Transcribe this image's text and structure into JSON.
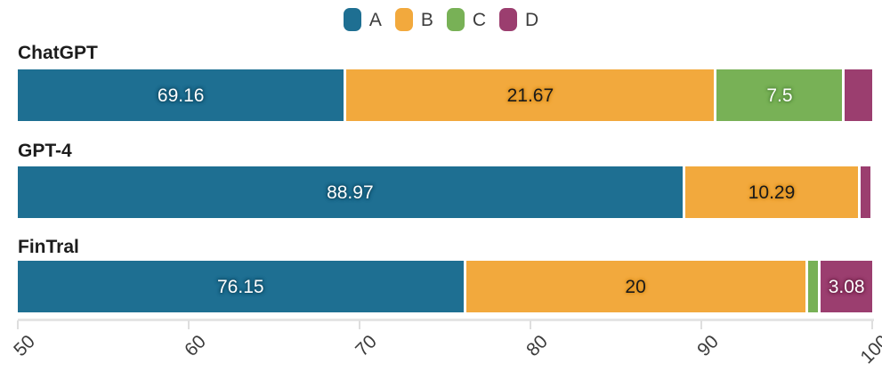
{
  "chart_data": {
    "type": "bar",
    "orientation": "horizontal",
    "stacked": true,
    "title": "",
    "categories": [
      "ChatGPT",
      "GPT-4",
      "FinTral"
    ],
    "series": [
      {
        "name": "A",
        "color": "#1E6F92",
        "label_color": "#ffffff",
        "label_halo": "#14536E",
        "values": [
          69.16,
          88.97,
          76.15
        ],
        "labels": [
          "69.16",
          "88.97",
          "76.15"
        ]
      },
      {
        "name": "B",
        "color": "#F2A93D",
        "label_color": "#1a1a1a",
        "label_halo": "#DF9526",
        "values": [
          21.67,
          10.29,
          20
        ],
        "labels": [
          "21.67",
          "10.29",
          "20"
        ]
      },
      {
        "name": "C",
        "color": "#78B156",
        "label_color": "#ffffff",
        "label_halo": "#5B9140",
        "values": [
          7.5,
          0,
          0.77
        ],
        "labels": [
          "7.5",
          "",
          ""
        ]
      },
      {
        "name": "D",
        "color": "#9B3E6F",
        "label_color": "#ffffff",
        "label_halo": "#76284F",
        "values": [
          1.67,
          0.74,
          3.08
        ],
        "labels": [
          "",
          "",
          "3.08"
        ]
      }
    ],
    "xlim": [
      50,
      100
    ],
    "x_ticks": [
      50,
      60,
      70,
      80,
      90,
      100
    ],
    "x_tick_labels": [
      "50",
      "60",
      "70",
      "80",
      "90",
      "100"
    ],
    "legend_position": "top-center",
    "grid": false,
    "axis_color": "#e5e5e5"
  }
}
